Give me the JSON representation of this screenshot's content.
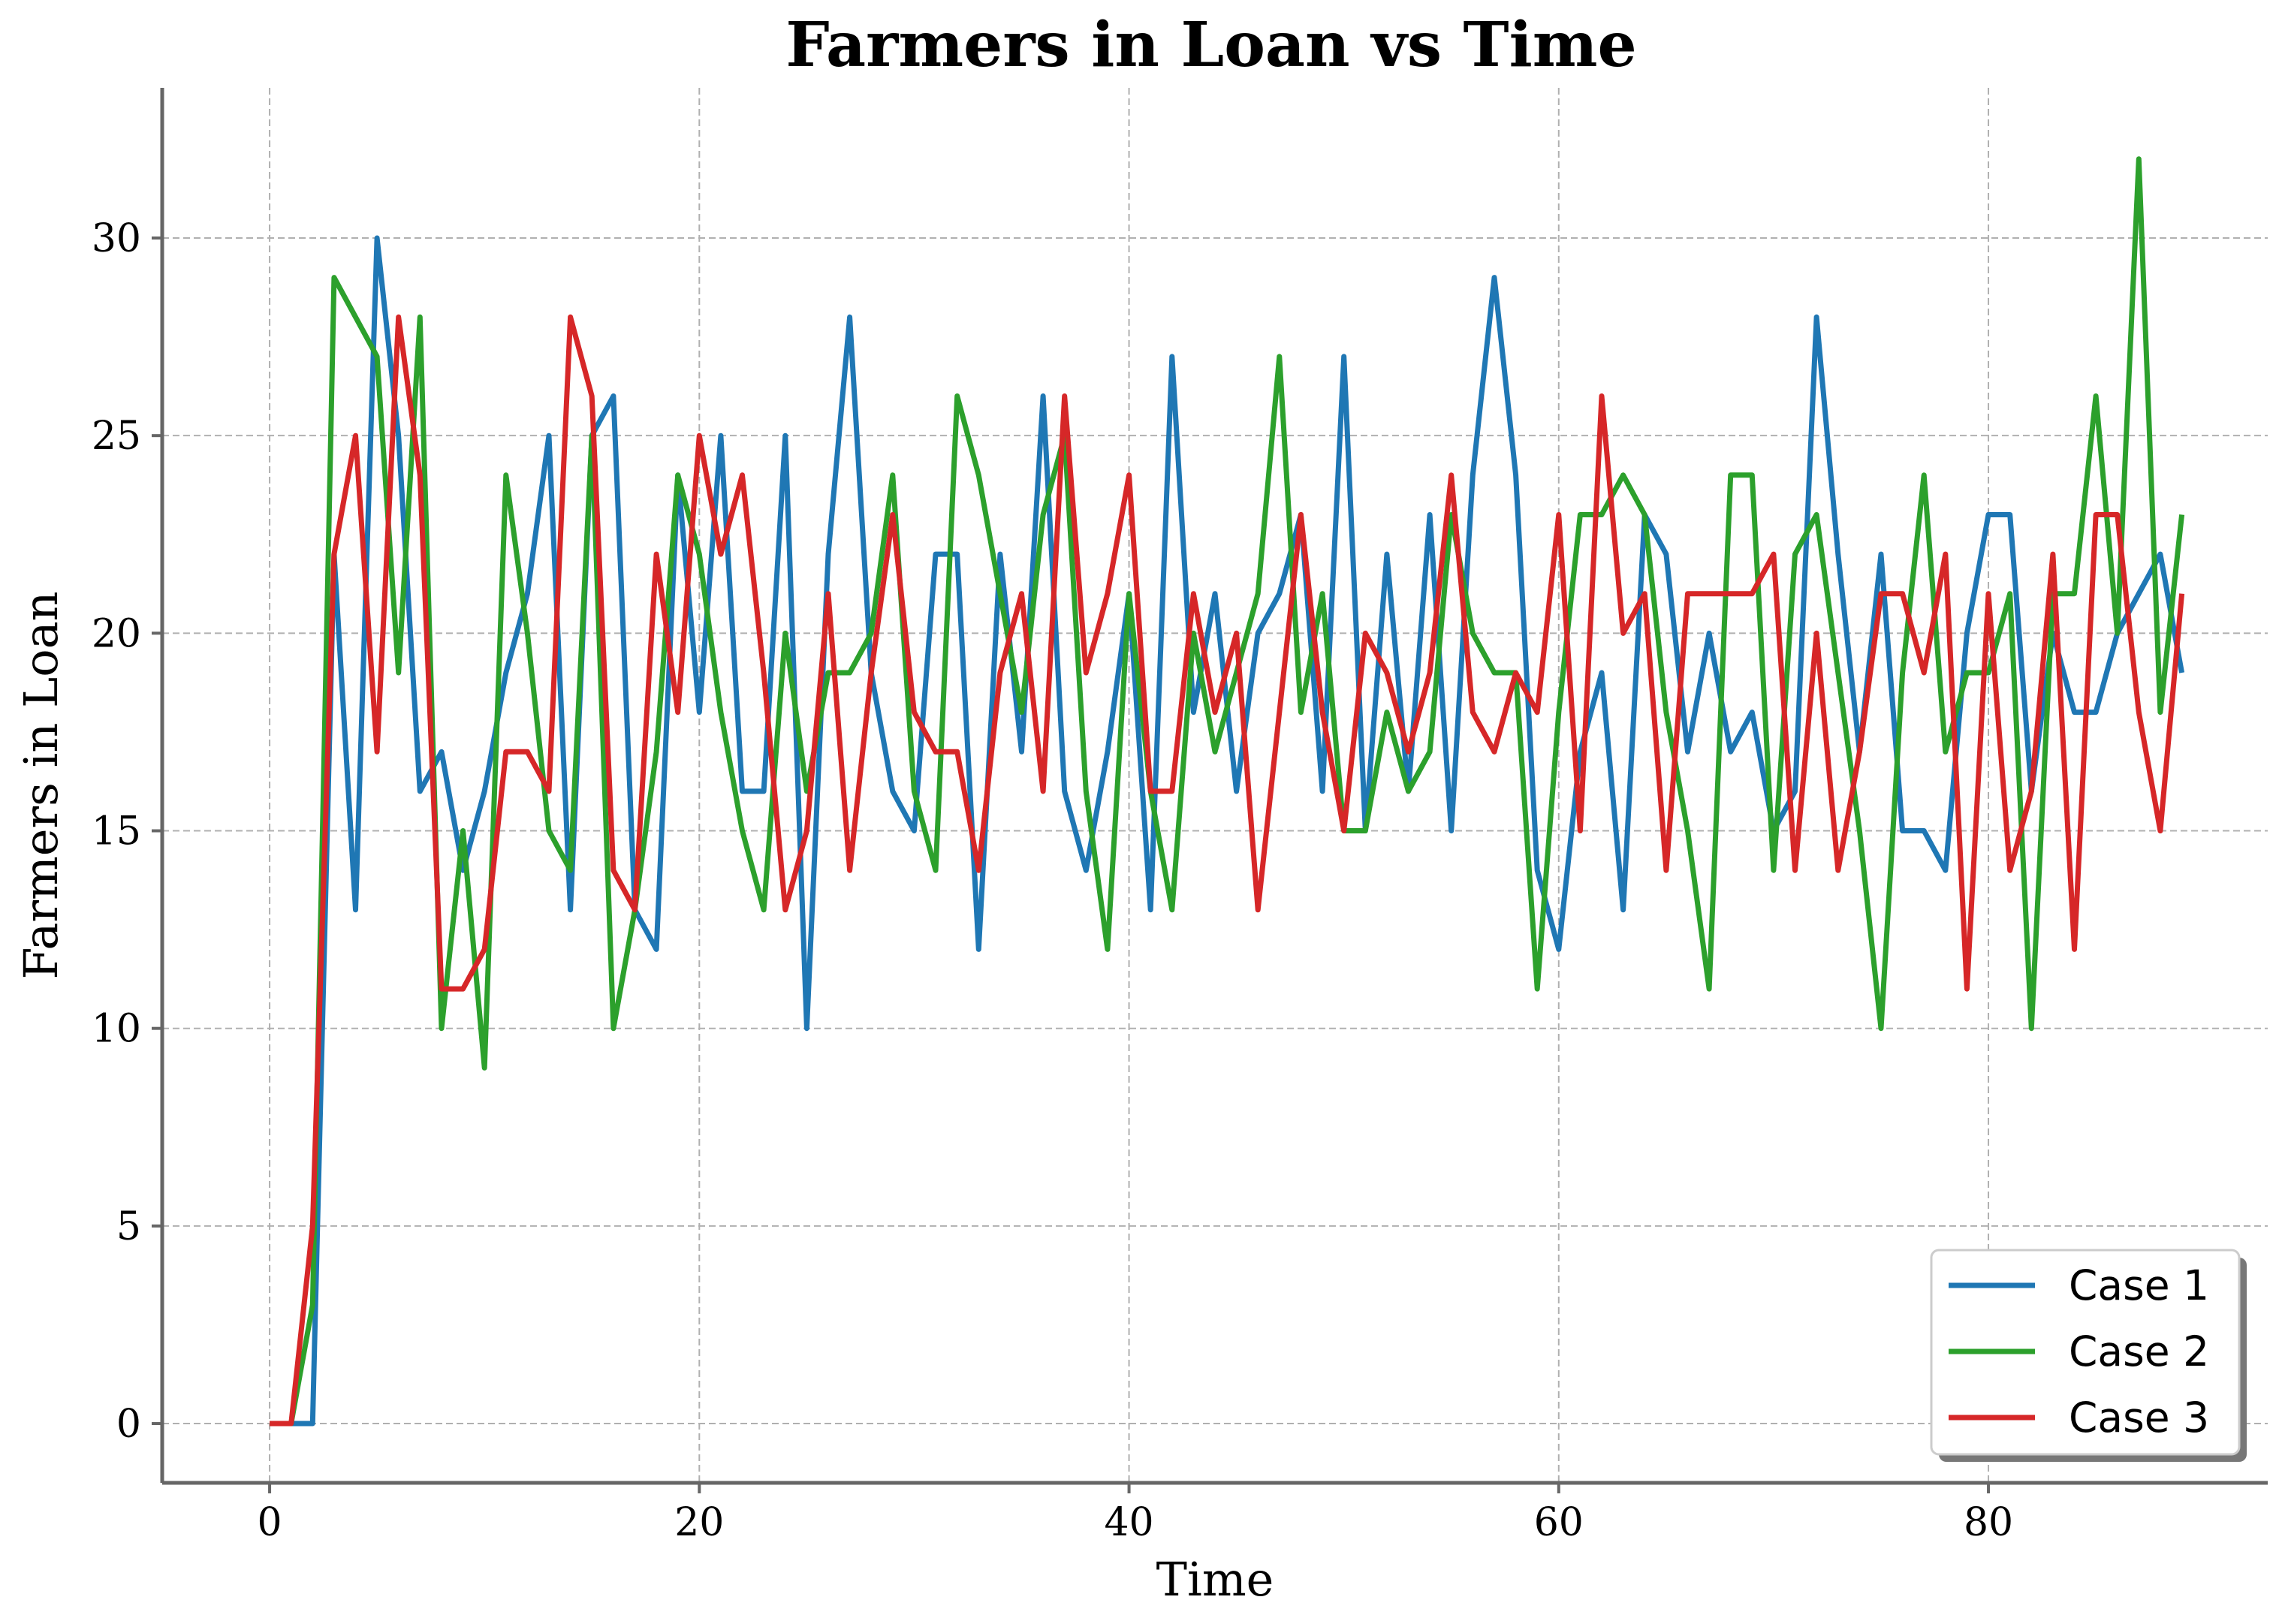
{
  "chart_data": {
    "type": "line",
    "title": "Farmers in Loan vs Time",
    "xlabel": "Time",
    "ylabel": "Farmers in Loan",
    "xlim": [
      -5,
      93
    ],
    "ylim": [
      -1.5,
      33.8
    ],
    "xticks": [
      0,
      20,
      40,
      60,
      80
    ],
    "yticks": [
      0,
      5,
      10,
      15,
      20,
      25,
      30
    ],
    "grid": true,
    "legend_position": "bottom-right",
    "x": [
      0,
      1,
      2,
      3,
      4,
      5,
      6,
      7,
      8,
      9,
      10,
      11,
      12,
      13,
      14,
      15,
      16,
      17,
      18,
      19,
      20,
      21,
      22,
      23,
      24,
      25,
      26,
      27,
      28,
      29,
      30,
      31,
      32,
      33,
      34,
      35,
      36,
      37,
      38,
      39,
      40,
      41,
      42,
      43,
      44,
      45,
      46,
      47,
      48,
      49,
      50,
      51,
      52,
      53,
      54,
      55,
      56,
      57,
      58,
      59,
      60,
      61,
      62,
      63,
      64,
      65,
      66,
      67,
      68,
      69,
      70,
      71,
      72,
      73,
      74,
      75,
      76,
      77,
      78,
      79,
      80,
      81,
      82,
      83,
      84,
      85,
      86,
      87,
      88,
      89
    ],
    "series": [
      {
        "name": "Case 1",
        "color": "#1f77b4",
        "values": [
          0,
          0,
          0,
          22,
          13,
          30,
          25,
          16,
          17,
          14,
          16,
          19,
          21,
          25,
          13,
          25,
          26,
          13,
          12,
          24,
          18,
          25,
          16,
          16,
          25,
          10,
          22,
          28,
          19,
          16,
          15,
          22,
          22,
          12,
          22,
          17,
          26,
          16,
          14,
          17,
          21,
          13,
          27,
          18,
          21,
          16,
          20,
          21,
          23,
          16,
          27,
          15,
          22,
          16,
          23,
          15,
          24,
          29,
          24,
          14,
          12,
          17,
          19,
          13,
          23,
          22,
          17,
          20,
          17,
          18,
          15,
          16,
          28,
          22,
          17,
          22,
          15,
          15,
          14,
          20,
          23,
          23,
          16,
          20,
          18,
          18,
          20,
          21,
          22,
          19
        ]
      },
      {
        "name": "Case 2",
        "color": "#2ca02c",
        "values": [
          0,
          0,
          3,
          29,
          28,
          27,
          19,
          28,
          10,
          15,
          9,
          24,
          20,
          15,
          14,
          25,
          10,
          13,
          17,
          24,
          22,
          18,
          15,
          13,
          20,
          16,
          19,
          19,
          20,
          24,
          16,
          14,
          26,
          24,
          21,
          18,
          23,
          25,
          16,
          12,
          21,
          16,
          13,
          20,
          17,
          19,
          21,
          27,
          18,
          21,
          15,
          15,
          18,
          16,
          17,
          23,
          20,
          19,
          19,
          11,
          18,
          23,
          23,
          24,
          23,
          18,
          15,
          11,
          24,
          24,
          14,
          22,
          23,
          19,
          15,
          10,
          19,
          24,
          17,
          19,
          19,
          21,
          10,
          21,
          21,
          26,
          20,
          32,
          18,
          23
        ]
      },
      {
        "name": "Case 3",
        "color": "#d62728",
        "values": [
          0,
          0,
          5,
          22,
          25,
          17,
          28,
          24,
          11,
          11,
          12,
          17,
          17,
          16,
          28,
          26,
          14,
          13,
          22,
          18,
          25,
          22,
          24,
          19,
          13,
          15,
          21,
          14,
          19,
          23,
          18,
          17,
          17,
          14,
          19,
          21,
          16,
          26,
          19,
          21,
          24,
          16,
          16,
          21,
          18,
          20,
          13,
          18,
          23,
          18,
          15,
          20,
          19,
          17,
          19,
          24,
          18,
          17,
          19,
          18,
          23,
          15,
          26,
          20,
          21,
          14,
          21,
          21,
          21,
          21,
          22,
          14,
          20,
          14,
          17,
          21,
          21,
          19,
          22,
          11,
          21,
          14,
          16,
          22,
          12,
          23,
          23,
          18,
          15,
          21
        ]
      }
    ]
  }
}
